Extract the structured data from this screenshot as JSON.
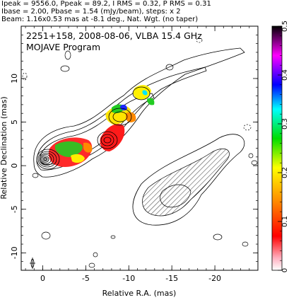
{
  "header": {
    "line1": "Ipeak = 9556.0, Ppeak = 89.2, I RMS = 0.32, P RMS = 0.31",
    "line2": "Ibase = 2.00, Pbase = 1.54 (mJy/beam), steps: x 2",
    "line3": "Beam: 1.16x0.53 mas at -8.1 deg., Nat. Wgt. (no taper)"
  },
  "plot": {
    "title_line1": "2251+158, 2008-08-06, VLBA 15.4 GHz",
    "title_line2": "MOJAVE Program"
  },
  "chart_data": {
    "type": "contour",
    "xlabel": "Relative R.A. (mas)",
    "ylabel": "Relative Declination (mas)",
    "xlim": [
      2.5,
      -25
    ],
    "ylim": [
      -12,
      16
    ],
    "xticks": [
      0,
      -5,
      -10,
      -15,
      -20
    ],
    "yticks": [
      10,
      5,
      0,
      -5,
      -10
    ],
    "colorbar": {
      "range": [
        0,
        0.5
      ],
      "ticks": [
        0,
        0.1,
        0.2,
        0.3,
        0.4,
        0.5
      ],
      "colors": [
        "#ffffff",
        "#ff0000",
        "#ff8800",
        "#ffff00",
        "#00dd00",
        "#00ffff",
        "#0000ff",
        "#ff00ff",
        "#000000"
      ]
    },
    "core": {
      "x": 0,
      "y": 0
    },
    "jet_components": [
      {
        "x": 0,
        "y": 0
      },
      {
        "x": -2,
        "y": 0.5
      },
      {
        "x": -4,
        "y": 2
      },
      {
        "x": -6.5,
        "y": 3
      },
      {
        "x": -8.5,
        "y": 6
      },
      {
        "x": -10.5,
        "y": 7.5
      }
    ],
    "southern_lobe": {
      "x": -14,
      "y": -5
    }
  }
}
